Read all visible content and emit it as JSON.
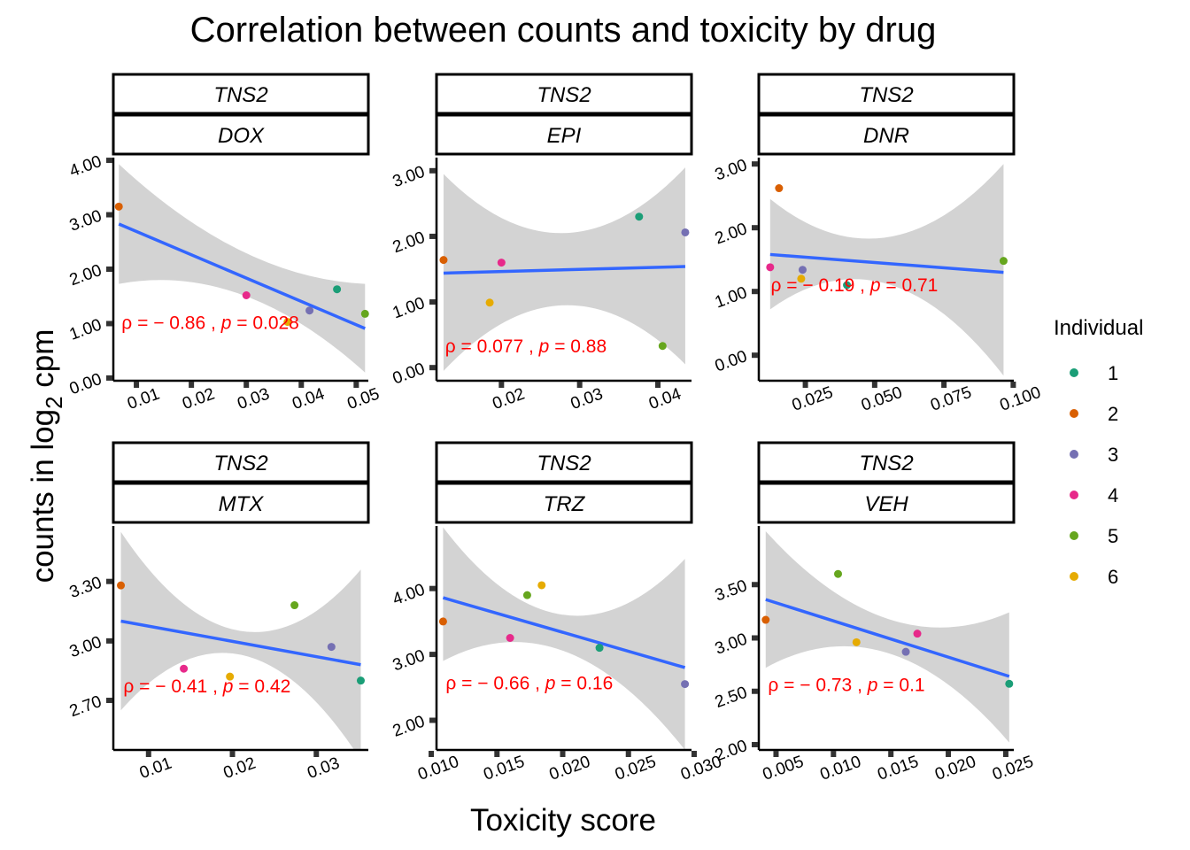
{
  "title": "Correlation between counts and toxicity by drug",
  "xlabel": "Toxicity score",
  "ylabel": "counts in log",
  "ylabel_subscript": "2",
  "ylabel_suffix": " cpm",
  "legend": {
    "title": "Individual",
    "position": "right",
    "entries": [
      {
        "label": "1",
        "color": "#1B9E77"
      },
      {
        "label": "2",
        "color": "#D95F02"
      },
      {
        "label": "3",
        "color": "#7570B3"
      },
      {
        "label": "4",
        "color": "#E7298A"
      },
      {
        "label": "5",
        "color": "#66A61E"
      },
      {
        "label": "6",
        "color": "#E6AB02"
      }
    ]
  },
  "colors": {
    "fit_line": "#3366FF",
    "ribbon": "#D3D3D3",
    "annotation": "#FF0000"
  },
  "chart_data": [
    {
      "type": "scatter",
      "gene": "TNS2",
      "drug": "DOX",
      "xlim": [
        0.0058,
        0.0522
      ],
      "ylim": [
        -0.05,
        4.05
      ],
      "xticks": [
        0.01,
        0.02,
        0.03,
        0.04,
        0.05
      ],
      "xtick_labels": [
        "0.01",
        "0.02",
        "0.03",
        "0.04",
        "0.05"
      ],
      "yticks": [
        0,
        1,
        2,
        3,
        4
      ],
      "ytick_labels": [
        "0.00",
        "1.00",
        "2.00",
        "3.00",
        "4.00"
      ],
      "points": [
        {
          "x": 0.0068,
          "y": 3.15,
          "ind": "2"
        },
        {
          "x": 0.03,
          "y": 1.52,
          "ind": "4"
        },
        {
          "x": 0.0375,
          "y": 1.03,
          "ind": "6"
        },
        {
          "x": 0.0415,
          "y": 1.24,
          "ind": "3"
        },
        {
          "x": 0.0465,
          "y": 1.63,
          "ind": "1"
        },
        {
          "x": 0.0516,
          "y": 1.18,
          "ind": "5"
        }
      ],
      "fit": {
        "x": [
          0.0068,
          0.0516
        ],
        "y": [
          2.83,
          0.91
        ]
      },
      "band": {
        "x": [
          0.0068,
          0.0292,
          0.0516
        ],
        "upper": [
          3.93,
          2.33,
          1.73
        ],
        "lower": [
          1.73,
          1.53,
          0.1
        ]
      },
      "annotation": {
        "rho": "− 0.86",
        "p": "0.028",
        "x": 0.0073,
        "y": 0.9
      }
    },
    {
      "type": "scatter",
      "gene": "TNS2",
      "drug": "EPI",
      "xlim": [
        0.0117,
        0.0443
      ],
      "ylim": [
        -0.2,
        3.2
      ],
      "xticks": [
        0.02,
        0.03,
        0.04
      ],
      "xtick_labels": [
        "0.02",
        "0.03",
        "0.04"
      ],
      "yticks": [
        0,
        1,
        2,
        3
      ],
      "ytick_labels": [
        "0.00",
        "1.00",
        "2.00",
        "3.00"
      ],
      "points": [
        {
          "x": 0.0126,
          "y": 1.64,
          "ind": "2"
        },
        {
          "x": 0.0185,
          "y": 0.99,
          "ind": "6"
        },
        {
          "x": 0.02,
          "y": 1.6,
          "ind": "4"
        },
        {
          "x": 0.0376,
          "y": 2.3,
          "ind": "1"
        },
        {
          "x": 0.0406,
          "y": 0.33,
          "ind": "5"
        },
        {
          "x": 0.0435,
          "y": 2.06,
          "ind": "3"
        }
      ],
      "fit": {
        "x": [
          0.0126,
          0.0435
        ],
        "y": [
          1.44,
          1.54
        ]
      },
      "band": {
        "x": [
          0.0126,
          0.028,
          0.0435
        ],
        "upper": [
          2.95,
          2.05,
          3.05
        ],
        "lower": [
          -0.05,
          0.95,
          0.05
        ]
      },
      "annotation": {
        "rho": "0.077",
        "p": "0.88",
        "x": 0.0128,
        "y": 0.23
      }
    },
    {
      "type": "scatter",
      "gene": "TNS2",
      "drug": "DNR",
      "xlim": [
        0.0082,
        0.1002
      ],
      "ylim": [
        -0.4,
        3.1
      ],
      "xticks": [
        0.025,
        0.05,
        0.075,
        0.1
      ],
      "xtick_labels": [
        "0.025",
        "0.050",
        "0.075",
        "0.100"
      ],
      "yticks": [
        0,
        1,
        2,
        3
      ],
      "ytick_labels": [
        "0.00",
        "1.00",
        "2.00",
        "3.00"
      ],
      "points": [
        {
          "x": 0.0123,
          "y": 1.38,
          "ind": "4"
        },
        {
          "x": 0.0155,
          "y": 2.62,
          "ind": "2"
        },
        {
          "x": 0.0235,
          "y": 1.2,
          "ind": "6"
        },
        {
          "x": 0.024,
          "y": 1.34,
          "ind": "3"
        },
        {
          "x": 0.04,
          "y": 1.1,
          "ind": "1"
        },
        {
          "x": 0.0965,
          "y": 1.48,
          "ind": "5"
        }
      ],
      "fit": {
        "x": [
          0.0123,
          0.0965
        ],
        "y": [
          1.58,
          1.3
        ]
      },
      "band": {
        "x": [
          0.0123,
          0.0544,
          0.0965
        ],
        "upper": [
          2.45,
          1.85,
          3.0
        ],
        "lower": [
          0.72,
          1.12,
          -0.32
        ]
      },
      "annotation": {
        "rho": "− 0.19",
        "p": "0.71",
        "x": 0.0125,
        "y": 1.0
      }
    },
    {
      "type": "scatter",
      "gene": "TNS2",
      "drug": "MTX",
      "xlim": [
        0.0058,
        0.0362
      ],
      "ylim": [
        2.45,
        3.58
      ],
      "xticks": [
        0.01,
        0.02,
        0.03
      ],
      "xtick_labels": [
        "0.01",
        "0.02",
        "0.03"
      ],
      "yticks": [
        2.7,
        3.0,
        3.3
      ],
      "ytick_labels": [
        "2.70",
        "3.00",
        "3.30"
      ],
      "points": [
        {
          "x": 0.0067,
          "y": 3.28,
          "ind": "2"
        },
        {
          "x": 0.0142,
          "y": 2.86,
          "ind": "4"
        },
        {
          "x": 0.0197,
          "y": 2.82,
          "ind": "6"
        },
        {
          "x": 0.0274,
          "y": 3.18,
          "ind": "5"
        },
        {
          "x": 0.0318,
          "y": 2.97,
          "ind": "3"
        },
        {
          "x": 0.0353,
          "y": 2.8,
          "ind": "1"
        }
      ],
      "fit": {
        "x": [
          0.0067,
          0.0353
        ],
        "y": [
          3.1,
          2.88
        ]
      },
      "band": {
        "x": [
          0.0067,
          0.021,
          0.0353
        ],
        "upper": [
          3.55,
          3.05,
          3.36
        ],
        "lower": [
          2.65,
          2.93,
          2.4
        ]
      },
      "annotation": {
        "rho": "− 0.41",
        "p": "0.42",
        "x": 0.007,
        "y": 2.74
      }
    },
    {
      "type": "scatter",
      "gene": "TNS2",
      "drug": "TRZ",
      "xlim": [
        0.0104,
        0.0298
      ],
      "ylim": [
        1.55,
        4.95
      ],
      "xticks": [
        0.01,
        0.015,
        0.02,
        0.025,
        0.03
      ],
      "xtick_labels": [
        "0.010",
        "0.015",
        "0.020",
        "0.025",
        "0.030"
      ],
      "yticks": [
        2,
        3,
        4
      ],
      "ytick_labels": [
        "2.00",
        "3.00",
        "4.00"
      ],
      "points": [
        {
          "x": 0.0109,
          "y": 3.5,
          "ind": "2"
        },
        {
          "x": 0.016,
          "y": 3.25,
          "ind": "4"
        },
        {
          "x": 0.0173,
          "y": 3.9,
          "ind": "5"
        },
        {
          "x": 0.0184,
          "y": 4.05,
          "ind": "6"
        },
        {
          "x": 0.0228,
          "y": 3.1,
          "ind": "1"
        },
        {
          "x": 0.0293,
          "y": 2.55,
          "ind": "3"
        }
      ],
      "fit": {
        "x": [
          0.0109,
          0.0293
        ],
        "y": [
          3.86,
          2.8
        ]
      },
      "band": {
        "x": [
          0.0109,
          0.0201,
          0.0293
        ],
        "upper": [
          4.93,
          3.6,
          4.45
        ],
        "lower": [
          2.9,
          3.05,
          1.55
        ]
      },
      "annotation": {
        "rho": "− 0.66",
        "p": "0.16",
        "x": 0.0111,
        "y": 2.47
      }
    },
    {
      "type": "scatter",
      "gene": "TNS2",
      "drug": "VEH",
      "xlim": [
        0.0035,
        0.0257
      ],
      "ylim": [
        1.95,
        4.05
      ],
      "xticks": [
        0.005,
        0.01,
        0.015,
        0.02,
        0.025
      ],
      "xtick_labels": [
        "0.005",
        "0.010",
        "0.015",
        "0.020",
        "0.025"
      ],
      "yticks": [
        2.0,
        2.5,
        3.0,
        3.5
      ],
      "ytick_labels": [
        "2.00",
        "2.50",
        "3.00",
        "3.50"
      ],
      "points": [
        {
          "x": 0.0041,
          "y": 3.17,
          "ind": "2"
        },
        {
          "x": 0.0104,
          "y": 3.6,
          "ind": "5"
        },
        {
          "x": 0.012,
          "y": 2.96,
          "ind": "6"
        },
        {
          "x": 0.0163,
          "y": 2.87,
          "ind": "3"
        },
        {
          "x": 0.0173,
          "y": 3.04,
          "ind": "4"
        },
        {
          "x": 0.0253,
          "y": 2.57,
          "ind": "1"
        }
      ],
      "fit": {
        "x": [
          0.0041,
          0.0253
        ],
        "y": [
          3.36,
          2.64
        ]
      },
      "band": {
        "x": [
          0.0041,
          0.0147,
          0.0253
        ],
        "upper": [
          4.0,
          3.18,
          3.24
        ],
        "lower": [
          2.72,
          2.86,
          2.02
        ]
      },
      "annotation": {
        "rho": "− 0.73",
        "p": "0.1",
        "x": 0.0043,
        "y": 2.5
      }
    }
  ]
}
